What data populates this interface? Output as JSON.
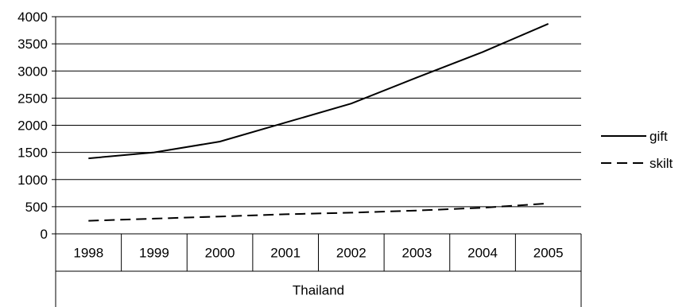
{
  "chart_data": {
    "type": "line",
    "group_label": "Thailand",
    "categories": [
      "1998",
      "1999",
      "2000",
      "2001",
      "2002",
      "2003",
      "2004",
      "2005"
    ],
    "y_ticks": [
      "0",
      "500",
      "1000",
      "1500",
      "2000",
      "2500",
      "3000",
      "3500",
      "4000"
    ],
    "ylim": [
      0,
      4000
    ],
    "grid": true,
    "legend_position": "right",
    "series": [
      {
        "name": "gift",
        "line_style": "solid",
        "color": "#000000",
        "values": [
          1390,
          1500,
          1700,
          2050,
          2400,
          2880,
          3350,
          3870
        ]
      },
      {
        "name": "skilt",
        "line_style": "dashed",
        "color": "#000000",
        "values": [
          240,
          280,
          320,
          360,
          390,
          430,
          480,
          560
        ]
      }
    ]
  }
}
